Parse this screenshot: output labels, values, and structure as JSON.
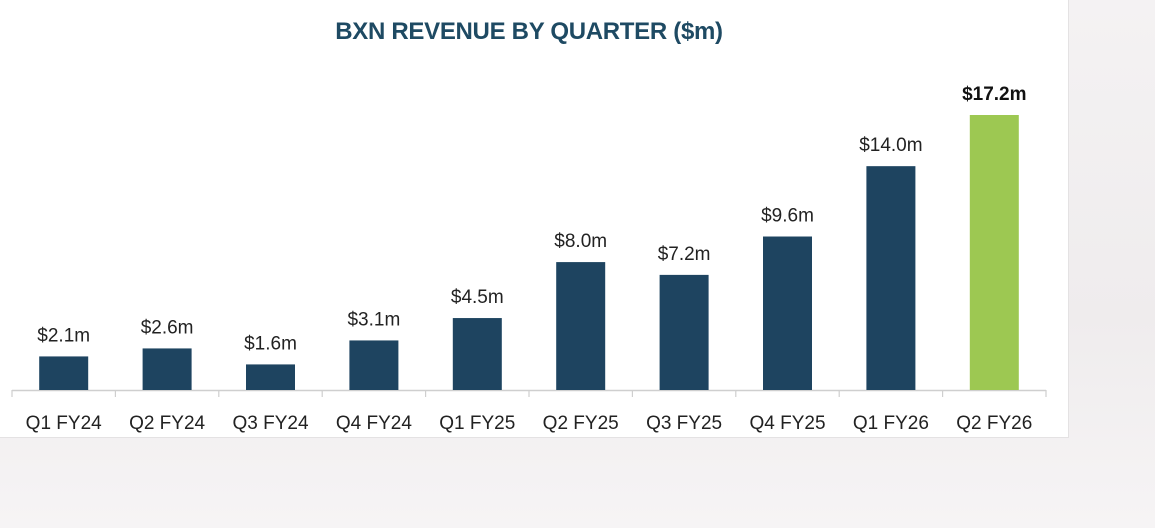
{
  "chart_data": {
    "type": "bar",
    "title": "BXN REVENUE BY QUARTER ($m)",
    "xlabel": "",
    "ylabel": "",
    "categories": [
      "Q1 FY24",
      "Q2 FY24",
      "Q3 FY24",
      "Q4 FY24",
      "Q1 FY25",
      "Q2 FY25",
      "Q3 FY25",
      "Q4 FY25",
      "Q1 FY26",
      "Q2 FY26"
    ],
    "values": [
      2.1,
      2.6,
      1.6,
      3.1,
      4.5,
      8.0,
      7.2,
      9.6,
      14.0,
      17.2
    ],
    "labels": [
      "$2.1m",
      "$2.6m",
      "$1.6m",
      "$3.1m",
      "$4.5m",
      "$8.0m",
      "$7.2m",
      "$9.6m",
      "$14.0m",
      "$17.2m"
    ],
    "highlight_index": 9,
    "ylim": [
      0,
      17.2
    ],
    "grid": false,
    "colors": {
      "bar": "#1e4460",
      "highlight": "#9dc852",
      "title": "#1e4a63",
      "label": "#222222",
      "highlight_label": "#111111",
      "axis": "#cfcfcf"
    }
  }
}
